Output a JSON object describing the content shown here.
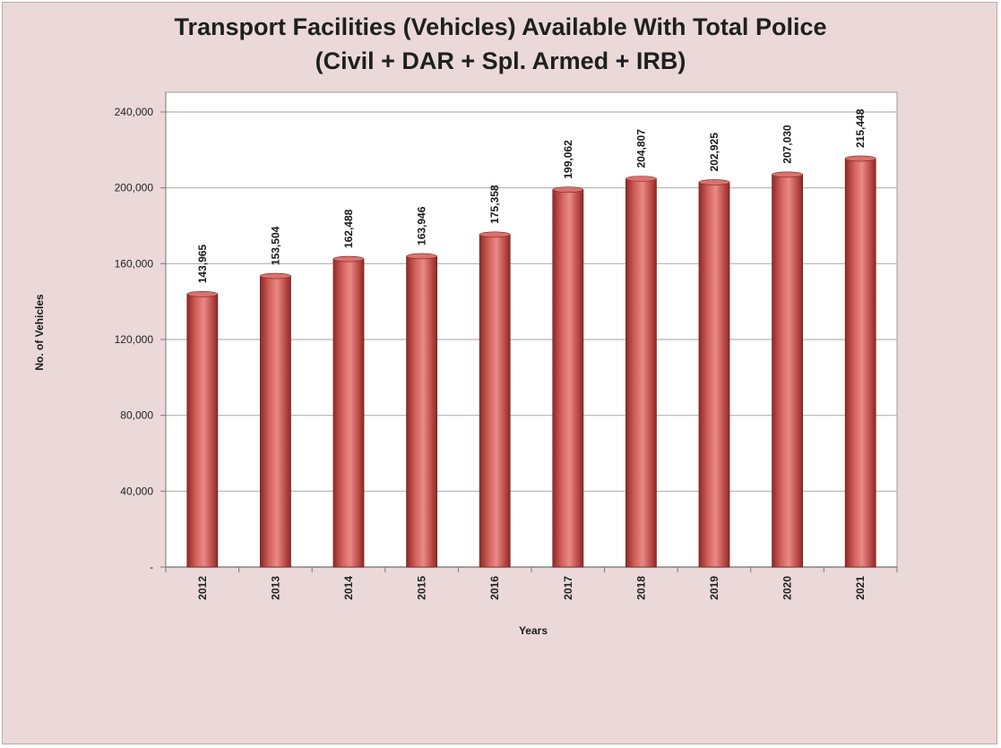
{
  "chart_data": {
    "type": "bar",
    "title_line1": "Transport Facilities (Vehicles) Available With Total Police",
    "title_line2": "(Civil + DAR + Spl. Armed + IRB)",
    "xlabel": "Years",
    "ylabel": "No. of Vehicles",
    "categories": [
      "2012",
      "2013",
      "2014",
      "2015",
      "2016",
      "2017",
      "2018",
      "2019",
      "2020",
      "2021"
    ],
    "values": [
      143965,
      153504,
      162488,
      163946,
      175358,
      199062,
      204807,
      202925,
      207030,
      215448
    ],
    "value_labels": [
      "143,965",
      "153,504",
      "162,488",
      "163,946",
      "175,358",
      "199,062",
      "204,807",
      "202,925",
      "207,030",
      "215,448"
    ],
    "ylim": [
      0,
      240000
    ],
    "yticks": [
      0,
      40000,
      80000,
      120000,
      160000,
      200000,
      240000
    ],
    "ytick_labels": [
      "-",
      "40,000",
      "80,000",
      "120,000",
      "160,000",
      "200,000",
      "240,000"
    ],
    "grid": true,
    "legend": "none",
    "colors": {
      "bar": "#c0504d",
      "bar_dark": "#8e2a27",
      "bar_light": "#e98a86",
      "plot_background": "#ffffff",
      "chart_background": "#ebd9da",
      "gridline": "#b3b3b3"
    }
  }
}
